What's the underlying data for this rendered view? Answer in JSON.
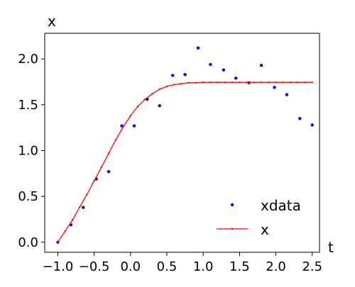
{
  "chart_data": {
    "type": "scatter",
    "title": "",
    "xlabel": "t",
    "ylabel": "x",
    "xlim": [
      -1.18,
      2.6
    ],
    "ylim": [
      -0.11,
      2.28
    ],
    "xticks": [
      -1.0,
      -0.5,
      0.0,
      0.5,
      1.0,
      1.5,
      2.0,
      2.5
    ],
    "xtick_labels": [
      "−1.0",
      "−0.5",
      "0.0",
      "0.5",
      "1.0",
      "1.5",
      "2.0",
      "2.5"
    ],
    "yticks": [
      0.0,
      0.5,
      1.0,
      1.5,
      2.0
    ],
    "ytick_labels": [
      "0.0",
      "0.5",
      "1.0",
      "1.5",
      "2.0"
    ],
    "grid": false,
    "legend_position": "lower-right",
    "series": [
      {
        "name": "xdata",
        "kind": "scatter",
        "color": "#0000ff",
        "x": [
          -1.0,
          -0.82,
          -0.65,
          -0.47,
          -0.3,
          -0.12,
          0.05,
          0.23,
          0.4,
          0.58,
          0.75,
          0.93,
          1.1,
          1.28,
          1.45,
          1.63,
          1.8,
          1.98,
          2.15,
          2.33,
          2.5
        ],
        "y": [
          0.0,
          0.19,
          0.38,
          0.69,
          0.77,
          1.27,
          1.27,
          1.56,
          1.49,
          1.82,
          1.83,
          2.12,
          1.94,
          1.88,
          1.79,
          1.74,
          1.93,
          1.69,
          1.61,
          1.35,
          1.28
        ]
      },
      {
        "name": "x",
        "kind": "line",
        "color": "#ff0000",
        "x": [
          -1.0,
          -0.9,
          -0.8,
          -0.7,
          -0.6,
          -0.5,
          -0.4,
          -0.3,
          -0.2,
          -0.1,
          0.0,
          0.1,
          0.2,
          0.3,
          0.4,
          0.5,
          0.6,
          0.7,
          0.8,
          0.9,
          1.0,
          1.1,
          1.2,
          1.3,
          1.4,
          1.5,
          1.6,
          1.7,
          1.8,
          1.9,
          2.0,
          2.1,
          2.2,
          2.3,
          2.4,
          2.5
        ],
        "y": [
          0.0,
          0.12,
          0.24,
          0.38,
          0.52,
          0.67,
          0.82,
          0.97,
          1.12,
          1.26,
          1.38,
          1.48,
          1.56,
          1.62,
          1.67,
          1.7,
          1.72,
          1.73,
          1.74,
          1.74,
          1.745,
          1.745,
          1.745,
          1.745,
          1.745,
          1.745,
          1.745,
          1.745,
          1.745,
          1.745,
          1.745,
          1.745,
          1.745,
          1.745,
          1.745,
          1.745
        ]
      }
    ]
  }
}
